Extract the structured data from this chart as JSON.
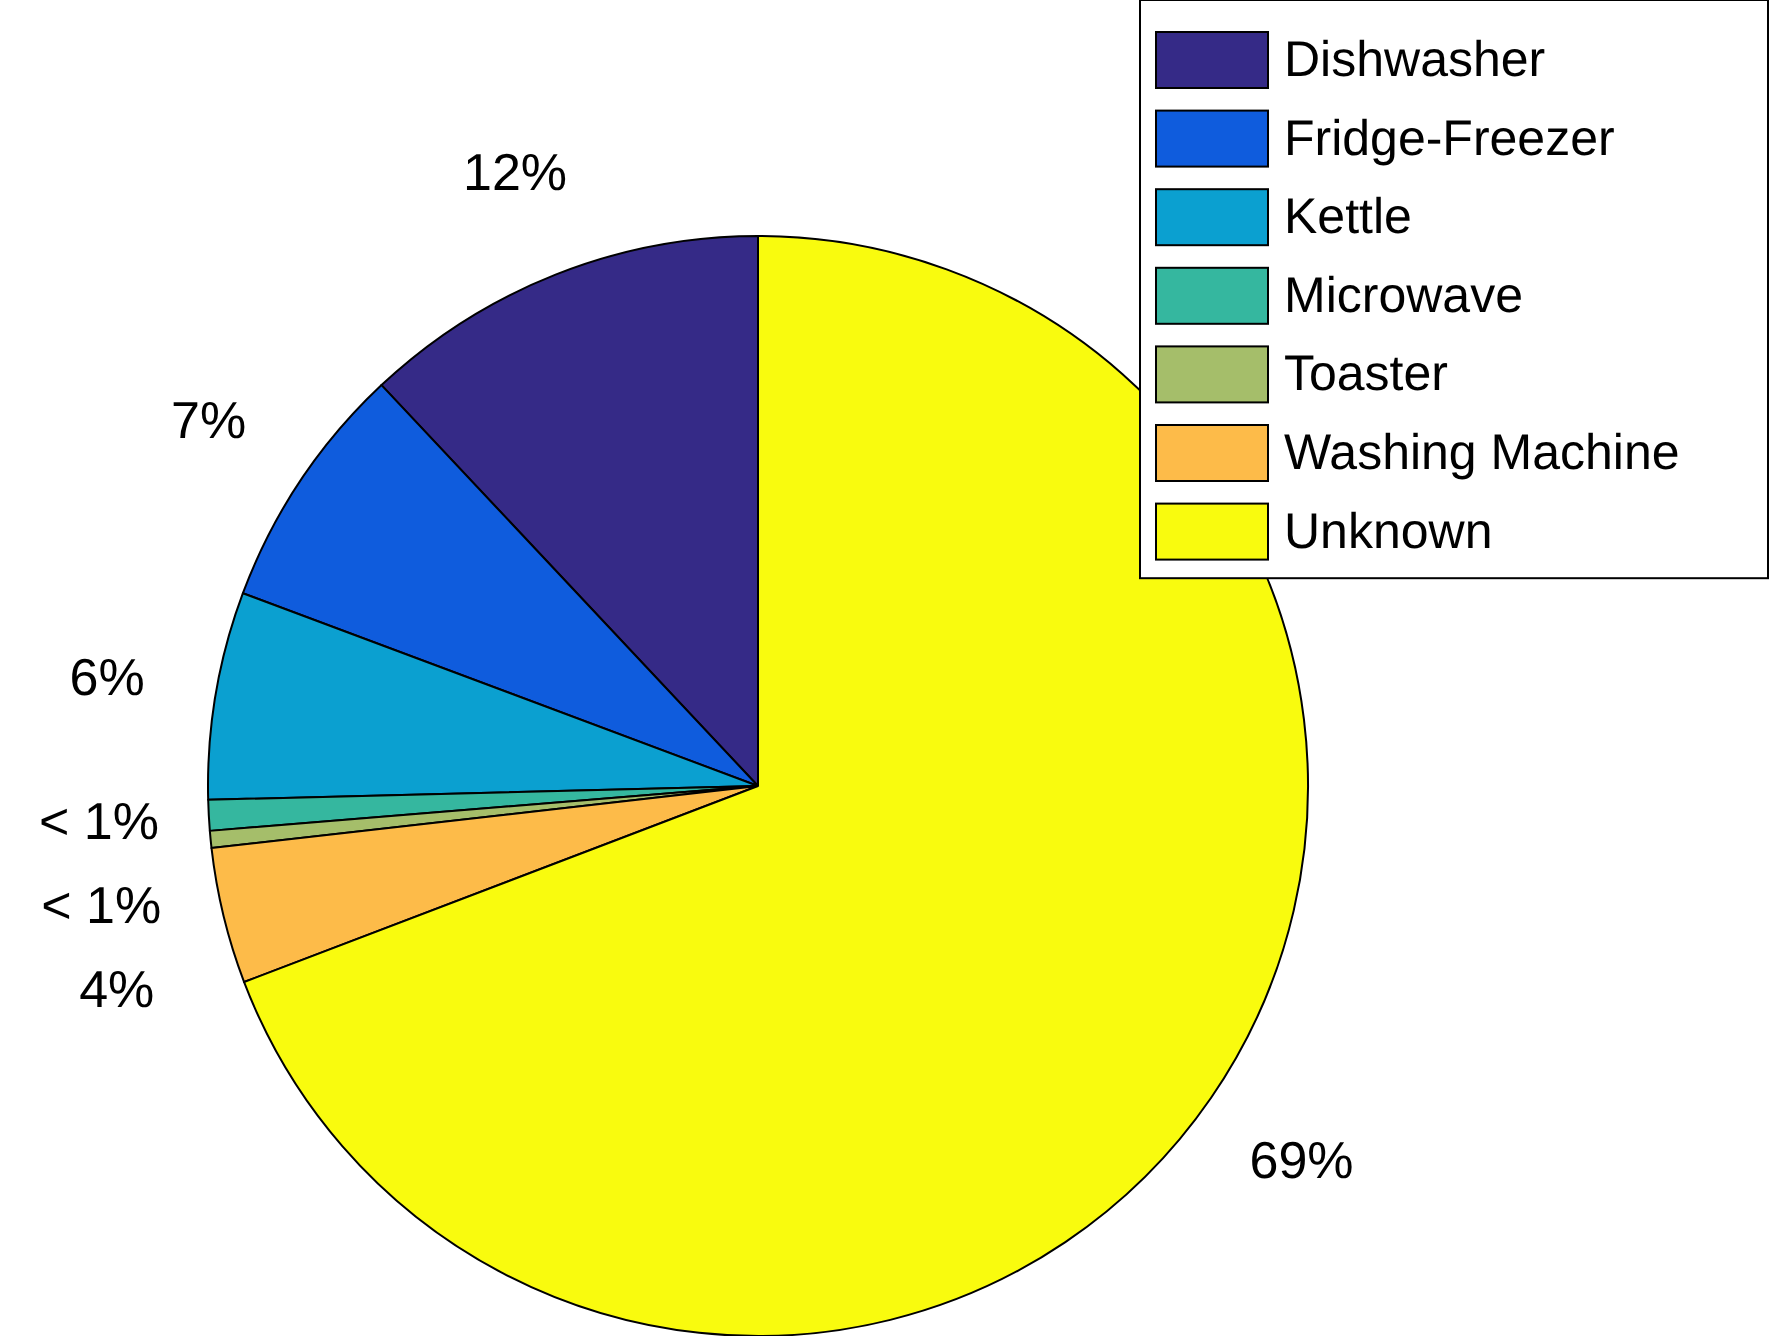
{
  "chart_data": {
    "type": "pie",
    "categories": [
      "Dishwasher",
      "Fridge-Freezer",
      "Kettle",
      "Microwave",
      "Toaster",
      "Washing Machine",
      "Unknown"
    ],
    "values": [
      12,
      7.3,
      6.1,
      0.9,
      0.5,
      4,
      69.2
    ],
    "value_labels": [
      "12%",
      "7%",
      "6%",
      "< 1%",
      "< 1%",
      "4%",
      "69%"
    ],
    "colors": [
      "#352a87",
      "#0f5cdd",
      "#0ba0d0",
      "#35b79f",
      "#a5be6a",
      "#fdbb49",
      "#f9fb0e"
    ],
    "legend": "top right"
  }
}
